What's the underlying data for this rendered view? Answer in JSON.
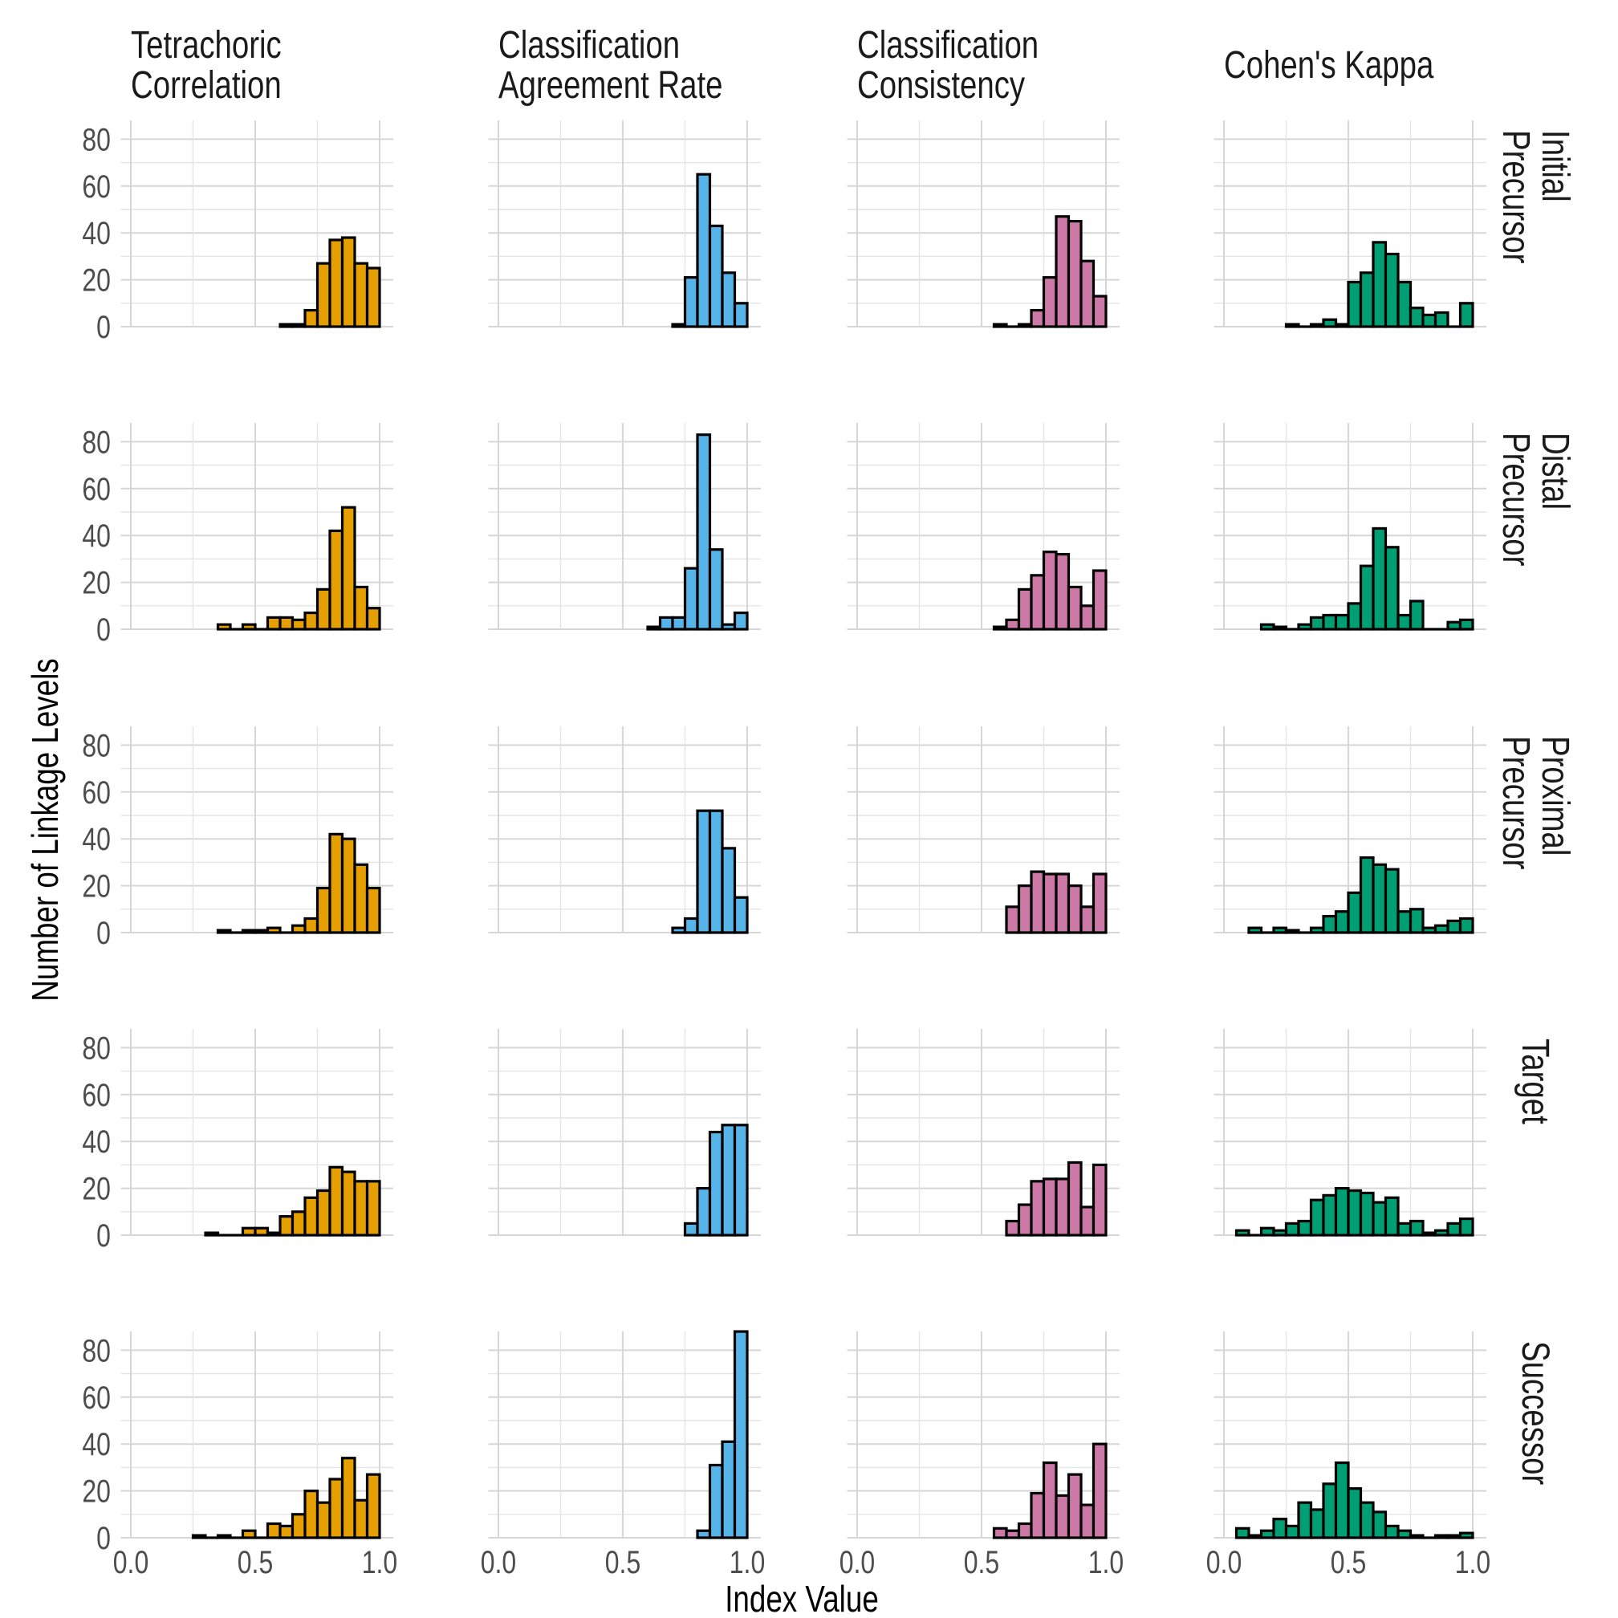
{
  "chart_data": {
    "type": "bar",
    "subtype": "histogram-facet-grid",
    "xlabel": "Index Value",
    "ylabel": "Number of Linkage Levels",
    "xlim": [
      0,
      1
    ],
    "ylim": [
      0,
      88
    ],
    "bin_width": 0.05,
    "x_ticks": [
      "0.0",
      "0.5",
      "1.0"
    ],
    "x_tick_values": [
      0,
      0.5,
      1
    ],
    "y_ticks": [
      "0",
      "20",
      "40",
      "60",
      "80"
    ],
    "y_tick_values": [
      0,
      20,
      40,
      60,
      80
    ],
    "grid": true,
    "legend": "none",
    "bar_outline_color": "#000000",
    "columns": [
      {
        "lines": [
          "Tetrachoric",
          "Correlation"
        ],
        "color": "#E69F00"
      },
      {
        "lines": [
          "Classification",
          "Agreement Rate"
        ],
        "color": "#56B4E9"
      },
      {
        "lines": [
          "Classification",
          "Consistency"
        ],
        "color": "#CC79A7"
      },
      {
        "lines": [
          "Cohen's Kappa"
        ],
        "color": "#009E73"
      }
    ],
    "rows": [
      {
        "lines": [
          "Initial",
          "Precursor"
        ]
      },
      {
        "lines": [
          "Distal",
          "Precursor"
        ]
      },
      {
        "lines": [
          "Proximal",
          "Precursor"
        ]
      },
      {
        "lines": [
          "Target"
        ]
      },
      {
        "lines": [
          "Successor"
        ]
      }
    ],
    "counts": [
      [
        [
          0,
          0,
          0,
          0,
          0,
          0,
          0,
          0,
          0,
          0,
          0,
          0,
          1,
          1,
          7,
          27,
          37,
          38,
          27,
          25
        ],
        [
          0,
          0,
          0,
          0,
          0,
          0,
          0,
          0,
          0,
          0,
          0,
          0,
          0,
          0,
          1,
          21,
          65,
          43,
          23,
          10
        ],
        [
          0,
          0,
          0,
          0,
          0,
          0,
          0,
          0,
          0,
          0,
          0,
          1,
          0,
          1,
          7,
          21,
          47,
          45,
          28,
          13
        ],
        [
          0,
          0,
          0,
          0,
          0,
          1,
          0,
          1,
          3,
          1,
          19,
          23,
          36,
          31,
          19,
          8,
          5,
          6,
          0,
          10
        ]
      ],
      [
        [
          0,
          0,
          0,
          0,
          0,
          0,
          0,
          2,
          0,
          2,
          0,
          5,
          5,
          4,
          7,
          17,
          42,
          52,
          18,
          9
        ],
        [
          0,
          0,
          0,
          0,
          0,
          0,
          0,
          0,
          0,
          0,
          0,
          0,
          1,
          5,
          5,
          26,
          83,
          34,
          2,
          7
        ],
        [
          0,
          0,
          0,
          0,
          0,
          0,
          0,
          0,
          0,
          0,
          0,
          1,
          4,
          17,
          23,
          33,
          32,
          18,
          10,
          25
        ],
        [
          0,
          0,
          0,
          2,
          1,
          0,
          2,
          5,
          6,
          6,
          11,
          27,
          43,
          35,
          6,
          12,
          0,
          0,
          3,
          4
        ]
      ],
      [
        [
          0,
          0,
          0,
          0,
          0,
          0,
          0,
          1,
          0,
          1,
          1,
          2,
          0,
          3,
          6,
          19,
          42,
          40,
          29,
          19
        ],
        [
          0,
          0,
          0,
          0,
          0,
          0,
          0,
          0,
          0,
          0,
          0,
          0,
          0,
          0,
          2,
          6,
          52,
          52,
          36,
          15
        ],
        [
          0,
          0,
          0,
          0,
          0,
          0,
          0,
          0,
          0,
          0,
          0,
          0,
          11,
          20,
          26,
          25,
          25,
          20,
          11,
          25
        ],
        [
          0,
          0,
          2,
          0,
          2,
          1,
          0,
          2,
          7,
          9,
          17,
          32,
          29,
          27,
          9,
          10,
          2,
          3,
          5,
          6
        ]
      ],
      [
        [
          0,
          0,
          0,
          0,
          0,
          0,
          1,
          0,
          0,
          3,
          3,
          1,
          8,
          10,
          16,
          19,
          29,
          27,
          23,
          23
        ],
        [
          0,
          0,
          0,
          0,
          0,
          0,
          0,
          0,
          0,
          0,
          0,
          0,
          0,
          0,
          0,
          5,
          20,
          44,
          47,
          47
        ],
        [
          0,
          0,
          0,
          0,
          0,
          0,
          0,
          0,
          0,
          0,
          0,
          0,
          6,
          13,
          23,
          24,
          24,
          31,
          12,
          30
        ],
        [
          0,
          2,
          0,
          3,
          2,
          5,
          6,
          15,
          17,
          20,
          19,
          18,
          14,
          16,
          5,
          6,
          1,
          2,
          5,
          7
        ]
      ],
      [
        [
          0,
          0,
          0,
          0,
          0,
          1,
          0,
          1,
          0,
          3,
          0,
          6,
          5,
          10,
          20,
          15,
          25,
          34,
          16,
          27
        ],
        [
          0,
          0,
          0,
          0,
          0,
          0,
          0,
          0,
          0,
          0,
          0,
          0,
          0,
          0,
          0,
          0,
          3,
          31,
          41,
          88
        ],
        [
          0,
          0,
          0,
          0,
          0,
          0,
          0,
          0,
          0,
          0,
          0,
          4,
          3,
          6,
          19,
          32,
          18,
          27,
          14,
          40
        ],
        [
          0,
          4,
          1,
          3,
          8,
          5,
          15,
          12,
          23,
          32,
          21,
          15,
          11,
          5,
          3,
          1,
          0,
          1,
          1,
          2
        ]
      ]
    ]
  }
}
